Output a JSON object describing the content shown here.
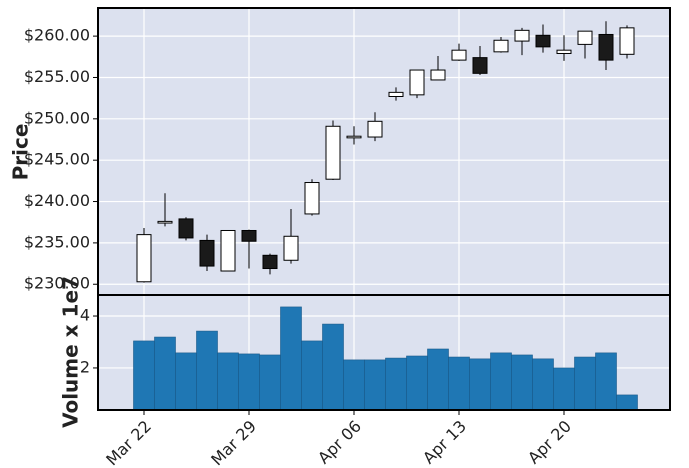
{
  "chart_data": [
    {
      "type": "candlestick",
      "ylabel": "Price",
      "open": [
        230.3,
        237.4,
        237.9,
        235.3,
        231.6,
        236.5,
        233.5,
        232.9,
        238.5,
        242.7,
        247.7,
        247.8,
        252.7,
        252.9,
        254.7,
        257.1,
        257.4,
        258.1,
        259.4,
        260.1,
        257.9,
        259.0,
        260.2,
        257.8
      ],
      "high": [
        236.8,
        241.0,
        238.1,
        236.0,
        236.5,
        236.6,
        233.7,
        239.1,
        242.7,
        249.8,
        249.1,
        250.8,
        253.8,
        255.9,
        257.6,
        259.1,
        258.8,
        259.9,
        261.0,
        261.4,
        260.1,
        260.6,
        261.8,
        261.3
      ],
      "low": [
        230.2,
        237.0,
        235.3,
        231.6,
        231.6,
        231.9,
        231.2,
        232.5,
        238.3,
        242.6,
        246.9,
        247.3,
        252.2,
        252.5,
        254.7,
        257.0,
        255.3,
        258.0,
        257.7,
        258.0,
        257.0,
        257.3,
        255.9,
        257.3
      ],
      "close": [
        236.0,
        237.6,
        235.6,
        232.2,
        236.5,
        235.2,
        231.9,
        235.8,
        242.3,
        249.1,
        247.9,
        249.7,
        253.2,
        255.9,
        255.9,
        258.3,
        255.5,
        259.5,
        260.7,
        258.7,
        258.3,
        260.6,
        257.1,
        261.0
      ],
      "up_color": "#ffffff",
      "down_color": "#1a1a1a",
      "ylim": [
        228.7,
        263.4
      ],
      "yticks": [
        {
          "value": 230,
          "label": "$230.00"
        },
        {
          "value": 235,
          "label": "$235.00"
        },
        {
          "value": 240,
          "label": "$240.00"
        },
        {
          "value": 245,
          "label": "$245.00"
        },
        {
          "value": 250,
          "label": "$250.00"
        },
        {
          "value": 255,
          "label": "$255.00"
        },
        {
          "value": 260,
          "label": "$260.00"
        }
      ],
      "grid": true
    },
    {
      "type": "bar",
      "ylabel": "Volume x 1e7",
      "categories": [
        "Mar 22",
        null,
        null,
        null,
        null,
        "Mar 29",
        null,
        null,
        null,
        null,
        "Apr 06",
        null,
        null,
        null,
        null,
        "Apr 13",
        null,
        null,
        null,
        null,
        "Apr 20",
        null,
        null,
        null
      ],
      "values": [
        3.04,
        3.19,
        2.58,
        3.42,
        2.58,
        2.54,
        2.5,
        4.35,
        3.04,
        3.69,
        2.31,
        2.31,
        2.38,
        2.46,
        2.73,
        2.42,
        2.35,
        2.58,
        2.5,
        2.35,
        2.0,
        2.42,
        2.58,
        0.96
      ],
      "color": "#1f77b4",
      "ylim": [
        0.38,
        4.81
      ],
      "yticks": [
        2,
        4
      ],
      "grid": true
    }
  ]
}
